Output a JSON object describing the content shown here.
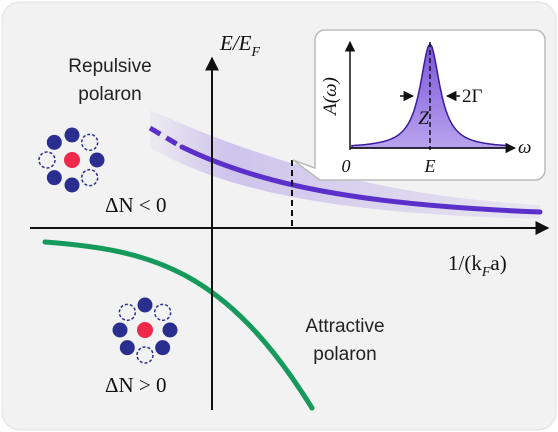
{
  "axes": {
    "y_label": {
      "text": "E/E",
      "sub": "F"
    },
    "x_label": {
      "pre": "1/(k",
      "sub": "F",
      "post": "a)"
    }
  },
  "repulsive": {
    "label_line1": "Repulsive",
    "label_line2": "polaron",
    "delta": "ΔN < 0"
  },
  "attractive": {
    "label_line1": "Attractive",
    "label_line2": "polaron",
    "delta": "ΔN > 0"
  },
  "inset": {
    "y_label": "A(ω)",
    "x_label": "ω",
    "zero": "0",
    "energy": "E",
    "weight": "Z",
    "width": "2Γ"
  }
}
